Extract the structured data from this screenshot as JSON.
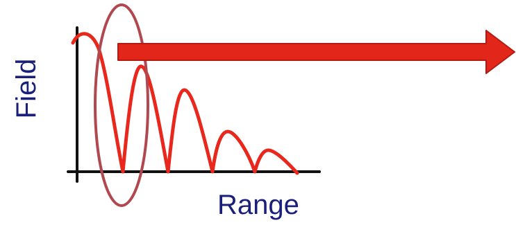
{
  "diagram": {
    "y_axis_label": "Field",
    "x_axis_label": "Range",
    "colors": {
      "axis": "#111111",
      "curve": "#e8281c",
      "arrow_fill": "#e3261a",
      "arrow_stroke": "#b51a12",
      "highlight_ellipse": "#b0494f",
      "label_text": "#1a1f7a"
    }
  }
}
